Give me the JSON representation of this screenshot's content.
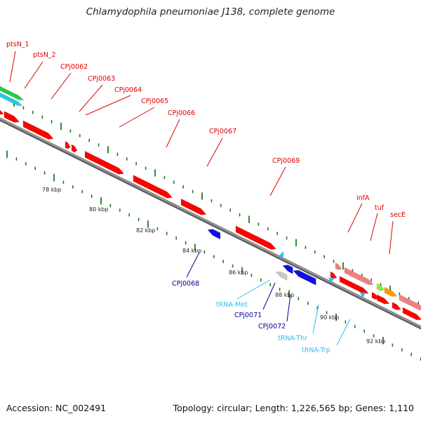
{
  "title": "Chlamydophila pneumoniae J138, complete genome",
  "footer": {
    "accession": "Accession: NC_002491",
    "topology": "Topology: circular; Length: 1,226,565 bp; Genes: 1,110"
  },
  "colors": {
    "backbone": "#808080",
    "tick": "#1f7a1f",
    "cds_forward": "#ff0000",
    "cds_reverse": "#1010e0",
    "cds_light": "#f08080",
    "trna": "#33bbee",
    "label_red": "#dd0000",
    "label_blue": "#000099",
    "label_cyan": "#33bbee"
  },
  "scale_labels": [
    "78 kbp",
    "80 kbp",
    "82 kbp",
    "84 kbp",
    "86 kbp",
    "88 kbp",
    "90 kbp",
    "92 kbp"
  ],
  "labels": [
    {
      "text": "ptsN_1",
      "tone": "red"
    },
    {
      "text": "ptsN_2",
      "tone": "red"
    },
    {
      "text": "CPj0062",
      "tone": "red"
    },
    {
      "text": "CPj0063",
      "tone": "red"
    },
    {
      "text": "CPj0064",
      "tone": "red"
    },
    {
      "text": "CPj0065",
      "tone": "red"
    },
    {
      "text": "CPj0066",
      "tone": "red"
    },
    {
      "text": "CPj0067",
      "tone": "red"
    },
    {
      "text": "CPj0069",
      "tone": "red"
    },
    {
      "text": "infA",
      "tone": "red"
    },
    {
      "text": "tuf",
      "tone": "red"
    },
    {
      "text": "secE",
      "tone": "red"
    },
    {
      "text": "CPj0068",
      "tone": "blue"
    },
    {
      "text": "tRNA-Met",
      "tone": "cyan"
    },
    {
      "text": "CPj0071",
      "tone": "blue"
    },
    {
      "text": "CPj0072",
      "tone": "blue"
    },
    {
      "text": "tRNA-Thr",
      "tone": "cyan"
    },
    {
      "text": "tRNA-Trp",
      "tone": "cyan"
    }
  ]
}
